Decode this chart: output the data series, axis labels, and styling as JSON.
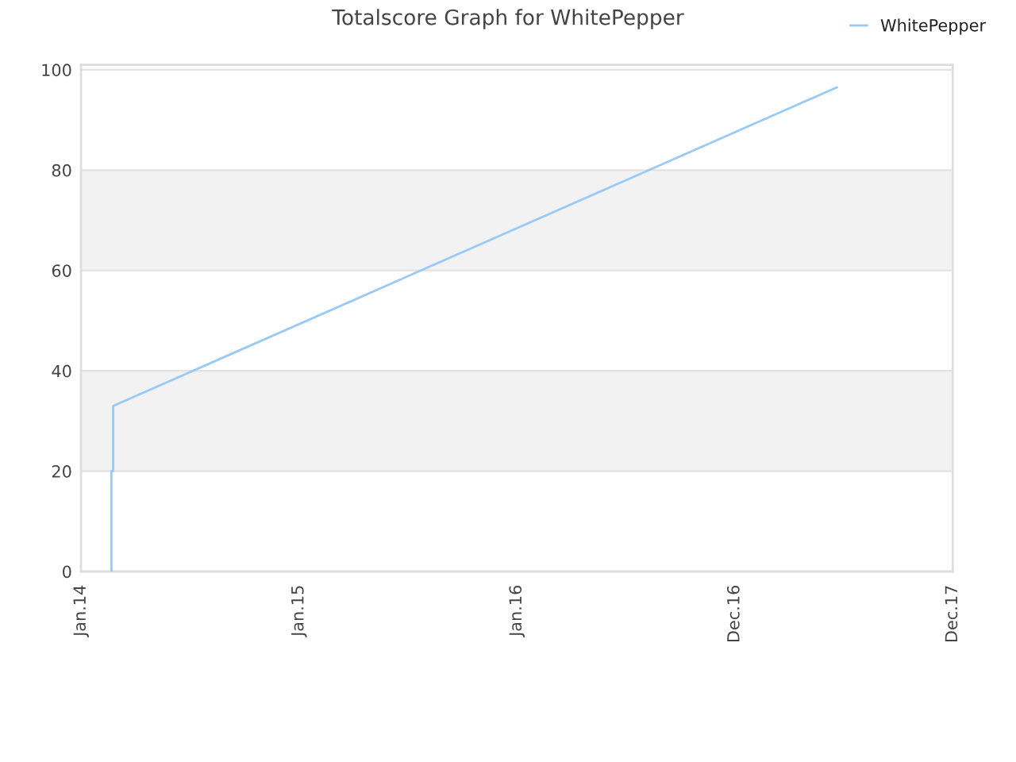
{
  "chart_data": {
    "type": "line",
    "title": "Totalscore Graph for WhitePepper",
    "x": [
      "2014-02-21",
      "2014-02-21",
      "2014-02-24",
      "2014-02-24",
      "2017-06-20"
    ],
    "series": [
      {
        "name": "WhitePepper",
        "color": "#99c9f5",
        "values": [
          0,
          20,
          20,
          33,
          96.5
        ]
      }
    ],
    "xlim": [
      "2014-01-01",
      "2017-12-31"
    ],
    "xticks": [
      {
        "value": "2014-01-01",
        "label": "Jan.14"
      },
      {
        "value": "2015-01-01",
        "label": "Jan.15"
      },
      {
        "value": "2016-01-01",
        "label": "Jan.16"
      },
      {
        "value": "2016-12-31",
        "label": "Dec.16"
      },
      {
        "value": "2017-12-31",
        "label": "Dec.17"
      }
    ],
    "ylim": [
      0,
      101
    ],
    "yticks": [
      0,
      20,
      40,
      60,
      80,
      100
    ],
    "grid": "y",
    "bands": [
      {
        "axis": "y",
        "from": 20,
        "to": 40,
        "color": "#f2f2f2"
      },
      {
        "axis": "y",
        "from": 60,
        "to": 80,
        "color": "#f2f2f2"
      }
    ],
    "legend": "top right",
    "line_style": "solid"
  }
}
